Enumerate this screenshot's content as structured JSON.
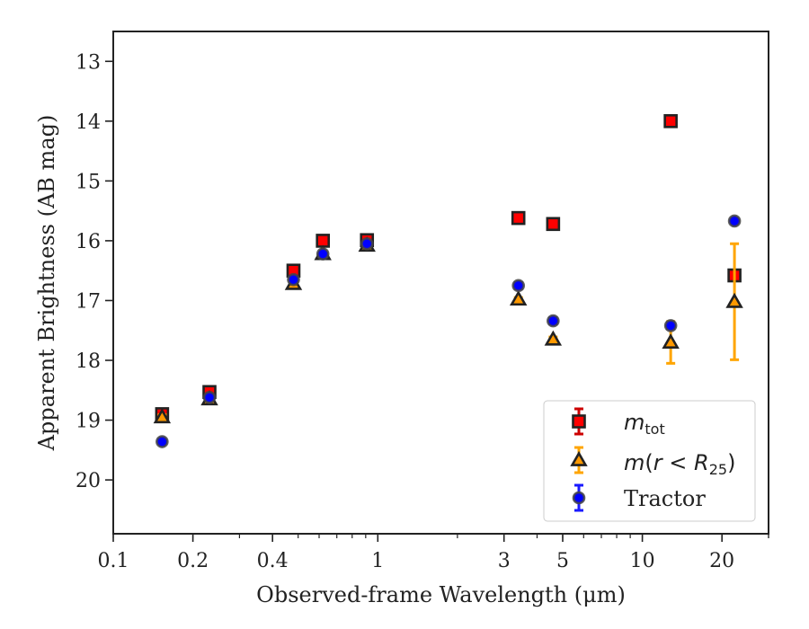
{
  "chart_data": {
    "type": "scatter",
    "xlabel": "Observed-frame Wavelength (μm)",
    "ylabel": "Apparent Brightness (AB mag)",
    "xscale": "log",
    "xlim": [
      0.1,
      30
    ],
    "ylim": [
      20.9,
      12.5
    ],
    "y_inverted": true,
    "xticks": [
      {
        "value": 0.1,
        "label": "0.1"
      },
      {
        "value": 0.2,
        "label": "0.2"
      },
      {
        "value": 0.4,
        "label": "0.4"
      },
      {
        "value": 1,
        "label": "1"
      },
      {
        "value": 3,
        "label": "3"
      },
      {
        "value": 5,
        "label": "5"
      },
      {
        "value": 10,
        "label": "10"
      },
      {
        "value": 20,
        "label": "20"
      }
    ],
    "yticks": [
      {
        "value": 13,
        "label": "13"
      },
      {
        "value": 14,
        "label": "14"
      },
      {
        "value": 15,
        "label": "15"
      },
      {
        "value": 16,
        "label": "16"
      },
      {
        "value": 17,
        "label": "17"
      },
      {
        "value": 18,
        "label": "18"
      },
      {
        "value": 19,
        "label": "19"
      },
      {
        "value": 20,
        "label": "20"
      }
    ],
    "grid": false,
    "legend_position": "bottom-right",
    "series": [
      {
        "name": "m_tot",
        "marker": "square",
        "color": "#ff0000",
        "edge_color": "#222222",
        "errbar_color": "#cc0000",
        "points": [
          {
            "x": 0.153,
            "y": 18.9,
            "yerr": 0.04
          },
          {
            "x": 0.231,
            "y": 18.53,
            "yerr": 0.03
          },
          {
            "x": 0.48,
            "y": 16.5,
            "yerr": 0.03
          },
          {
            "x": 0.62,
            "y": 16.0,
            "yerr": 0.02
          },
          {
            "x": 0.91,
            "y": 15.99,
            "yerr": 0.02
          },
          {
            "x": 3.4,
            "y": 15.62,
            "yerr": 0.02
          },
          {
            "x": 4.6,
            "y": 15.72,
            "yerr": 0.02
          },
          {
            "x": 12.8,
            "y": 14.0,
            "yerr": 0.02
          },
          {
            "x": 22.3,
            "y": 16.58,
            "yerr": 0.05
          }
        ]
      },
      {
        "name": "m(r < R25)",
        "marker": "triangle",
        "color": "#ff9900",
        "edge_color": "#222222",
        "errbar_color": "#ffa500",
        "points": [
          {
            "x": 0.153,
            "y": 18.95,
            "yerr": 0.04
          },
          {
            "x": 0.231,
            "y": 18.65,
            "yerr": 0.03
          },
          {
            "x": 0.48,
            "y": 16.72,
            "yerr": 0.03
          },
          {
            "x": 0.62,
            "y": 16.22,
            "yerr": 0.02
          },
          {
            "x": 0.91,
            "y": 16.08,
            "yerr": 0.02
          },
          {
            "x": 3.4,
            "y": 16.98,
            "yerr": 0.03
          },
          {
            "x": 4.6,
            "y": 17.65,
            "yerr": 0.04
          },
          {
            "x": 12.8,
            "y": 17.7,
            "yerr": 0.35
          },
          {
            "x": 22.3,
            "y": 17.02,
            "yerr": 0.97
          }
        ]
      },
      {
        "name": "Tractor",
        "marker": "circle",
        "color": "#0000ff",
        "edge_color": "#444444",
        "errbar_color": "#1a1aff",
        "points": [
          {
            "x": 0.153,
            "y": 19.36,
            "yerr": 0.03
          },
          {
            "x": 0.231,
            "y": 18.62,
            "yerr": 0.03
          },
          {
            "x": 0.48,
            "y": 16.65,
            "yerr": 0.03
          },
          {
            "x": 0.62,
            "y": 16.22,
            "yerr": 0.03
          },
          {
            "x": 0.91,
            "y": 16.05,
            "yerr": 0.03
          },
          {
            "x": 3.4,
            "y": 16.75,
            "yerr": 0.05
          },
          {
            "x": 4.6,
            "y": 17.34,
            "yerr": 0.05
          },
          {
            "x": 12.8,
            "y": 17.42,
            "yerr": 0.05
          },
          {
            "x": 22.3,
            "y": 15.67,
            "yerr": 0.03
          }
        ]
      }
    ]
  }
}
